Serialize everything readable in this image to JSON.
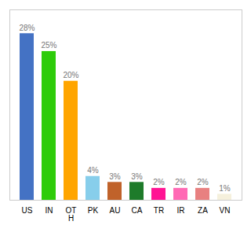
{
  "chart_data": {
    "type": "bar",
    "categories": [
      "US",
      "IN",
      "OT\nH",
      "PK",
      "AU",
      "CA",
      "TR",
      "IR",
      "ZA",
      "VN"
    ],
    "values": [
      28,
      25,
      20,
      4,
      3,
      3,
      2,
      2,
      2,
      1
    ],
    "value_labels": [
      "28%",
      "25%",
      "20%",
      "4%",
      "3%",
      "3%",
      "2%",
      "2%",
      "2%",
      "1%"
    ],
    "colors": [
      "#4472C4",
      "#2ECC0A",
      "#FFA500",
      "#87CEEB",
      "#C0622A",
      "#1E7B2A",
      "#FF1493",
      "#FF69B4",
      "#E88080",
      "#F5F0DC"
    ],
    "ylim": [
      0,
      32
    ],
    "data_labels": true,
    "tick_labels": "x",
    "grid": false
  }
}
